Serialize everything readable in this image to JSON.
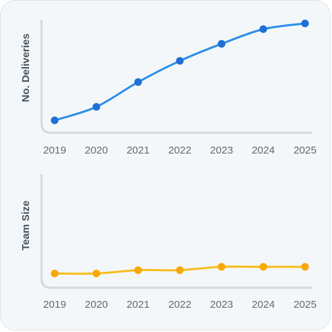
{
  "chart_data": [
    {
      "type": "line",
      "ylabel": "No. Deliveries",
      "categories": [
        "2019",
        "2020",
        "2021",
        "2022",
        "2023",
        "2024",
        "2025"
      ],
      "series": [
        {
          "values": [
            0,
            8.3,
            23.5,
            36.5,
            47,
            56,
            59.5
          ]
        }
      ],
      "color": "#2b8ee8",
      "marker_color": "#1f6fd8",
      "ylim": [
        0,
        62
      ]
    },
    {
      "type": "line",
      "ylabel": "Team Size",
      "categories": [
        "2019",
        "2020",
        "2021",
        "2022",
        "2023",
        "2024",
        "2025"
      ],
      "series": [
        {
          "values": [
            2,
            2,
            3,
            3,
            4,
            4,
            4
          ]
        }
      ],
      "color": "#f6bd1b",
      "marker_color": "#f8a805",
      "ylim": [
        0,
        21
      ]
    }
  ]
}
